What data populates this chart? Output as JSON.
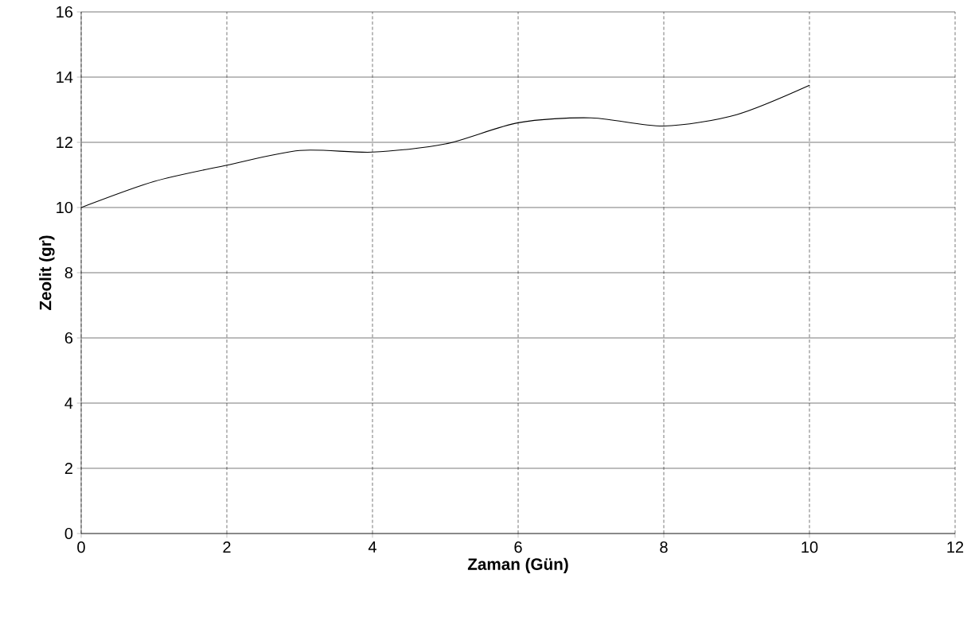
{
  "chart_data": {
    "type": "line",
    "xlabel": "Zaman (Gün)",
    "ylabel": "Zeolit (gr)",
    "x": [
      0,
      1,
      2,
      3,
      4,
      5,
      6,
      7,
      8,
      9,
      10
    ],
    "series": [
      {
        "color": "#000000",
        "values": [
          10.0,
          10.8,
          11.3,
          11.75,
          11.7,
          11.95,
          12.6,
          12.75,
          12.5,
          12.85,
          13.75
        ]
      }
    ],
    "xlim": [
      0,
      12
    ],
    "ylim": [
      0,
      16
    ],
    "xticks": [
      0,
      2,
      4,
      6,
      8,
      10,
      12
    ],
    "yticks": [
      0,
      2,
      4,
      6,
      8,
      10,
      12,
      14,
      16
    ],
    "grid": true,
    "marker": "none",
    "line_style": "solid"
  }
}
